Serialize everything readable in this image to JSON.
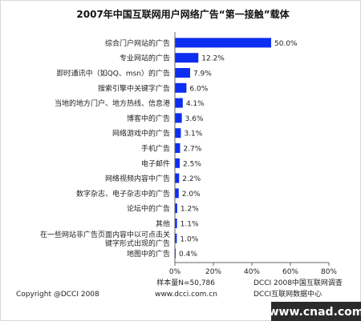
{
  "chart_data": {
    "type": "bar",
    "orientation": "horizontal",
    "title": "2007年中国互联网用户网络广告“第一接触”载体",
    "categories": [
      "综合门户网站的广告",
      "专业网站的广告",
      "即时通讯中（如QQ、msn）的广告",
      "搜索引擎中关键字广告",
      "当地的地方门户、地方热线、信息港",
      "博客中的广告",
      "网络游戏中的广告",
      "手机广告",
      "电子邮件",
      "网络视频内容中广告",
      "数字杂志、电子杂志中的广告",
      "论坛中的广告",
      "其他",
      "在一些网站非广告页面内容中以可点击关键字形式出现的广告",
      "地图中的广告"
    ],
    "category_lines": [
      [
        "综合门户网站的广告"
      ],
      [
        "专业网站的广告"
      ],
      [
        "即时通讯中（如QQ、msn）的广告"
      ],
      [
        "搜索引擎中关键字广告"
      ],
      [
        "当地的地方门户、地方热线、信息港"
      ],
      [
        "博客中的广告"
      ],
      [
        "网络游戏中的广告"
      ],
      [
        "手机广告"
      ],
      [
        "电子邮件"
      ],
      [
        "网络视频内容中广告"
      ],
      [
        "数字杂志、电子杂志中的广告"
      ],
      [
        "论坛中的广告"
      ],
      [
        "其他"
      ],
      [
        "在一些网站非广告页面内容中以可点击关",
        "键字形式出现的广告"
      ],
      [
        "地图中的广告"
      ]
    ],
    "values": [
      50.0,
      12.2,
      7.9,
      6.0,
      4.1,
      3.6,
      3.1,
      2.7,
      2.5,
      2.2,
      2.0,
      1.2,
      1.1,
      1.0,
      0.4
    ],
    "value_labels": [
      "50.0%",
      "12.2%",
      "7.9%",
      "6.0%",
      "4.1%",
      "3.6%",
      "3.1%",
      "2.7%",
      "2.5%",
      "2.2%",
      "2.0%",
      "1.2%",
      "1.1%",
      "1.0%",
      "0.4%"
    ],
    "xlim": [
      0,
      80
    ],
    "xticks": [
      0,
      20,
      40,
      60,
      80
    ],
    "xtick_labels": [
      "0%",
      "20%",
      "40%",
      "60%",
      "80%"
    ],
    "grid": false,
    "bar_color": "#0d2ef0",
    "sample_note": "样本量N=50,786",
    "source_line1": "DCCI 2008中国互联网调查",
    "source_line2": "DCCI互联网数据中心",
    "copyright": "Copyright @DCCI 2008",
    "website": "www.dcci.com.cn",
    "watermark": "www.cnad.com"
  }
}
